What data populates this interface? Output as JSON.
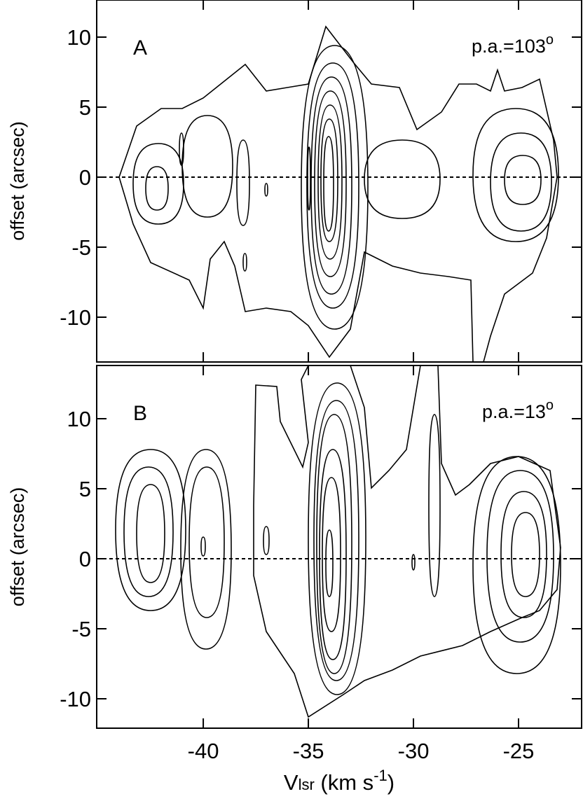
{
  "chart_data": [
    {
      "type": "contour",
      "panel_label": "A",
      "annotation": {
        "text": "p.a.=103",
        "sup": "o"
      },
      "ylabel": "offset (arcsec)",
      "xlim": [
        -45.07,
        -22
      ],
      "ylim": [
        -13.2,
        12.65
      ],
      "xticks": [
        -40,
        -35,
        -30,
        -25
      ],
      "yticks": [
        10,
        5,
        0,
        -5,
        -10
      ],
      "hline": 0
    },
    {
      "type": "contour",
      "panel_label": "B",
      "annotation": {
        "text": "p.a.=13",
        "sup": "o"
      },
      "ylabel": "offset (arcsec)",
      "xlabel": {
        "main": "V",
        "sub": "lsr",
        "rest": " (km s",
        "sup": "-1",
        "end": ")"
      },
      "xlim": [
        -45.07,
        -22
      ],
      "ylim": [
        -12.1,
        13.8
      ],
      "xticks": [
        -40,
        -35,
        -30,
        -25
      ],
      "yticks": [
        10,
        5,
        0,
        -5,
        -10
      ],
      "hline": 0
    }
  ]
}
